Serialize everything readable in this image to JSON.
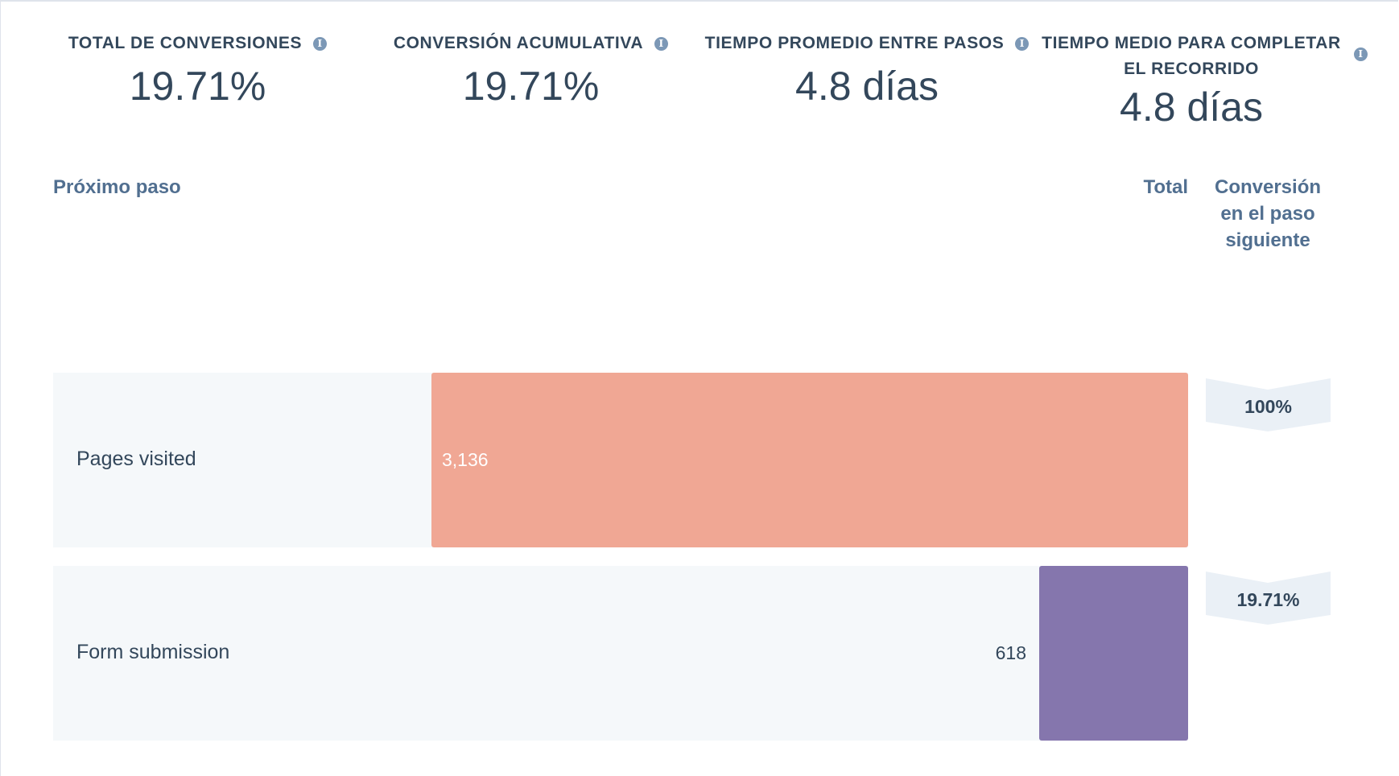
{
  "kpis": [
    {
      "title": "TOTAL DE CONVERSIONES",
      "value": "19.71%"
    },
    {
      "title": "CONVERSIÓN ACUMULATIVA",
      "value": "19.71%"
    },
    {
      "title": "TIEMPO PROMEDIO ENTRE PASOS",
      "value": "4.8 días"
    },
    {
      "title_line1": "TIEMPO MEDIO PARA COMPLETAR",
      "title_line2": "EL RECORRIDO",
      "value": "4.8 días"
    }
  ],
  "table": {
    "col_step": "Próximo paso",
    "col_total": "Total",
    "col_conv_line1": "Conversión",
    "col_conv_line2": "en el paso",
    "col_conv_line3": "siguiente"
  },
  "steps": [
    {
      "label": "Pages visited",
      "total": "3,136",
      "total_num": 3136,
      "conversion": "100%",
      "bar_color": "#f0a794"
    },
    {
      "label": "Form submission",
      "total": "618",
      "total_num": 618,
      "conversion": "19.71%",
      "bar_color": "#8576ad"
    }
  ],
  "colors": {
    "text": "#33475b",
    "header": "#516f90",
    "row_bg": "#f5f8fa",
    "badge": "#eaf0f6",
    "info_icon": "#7c98b6"
  }
}
